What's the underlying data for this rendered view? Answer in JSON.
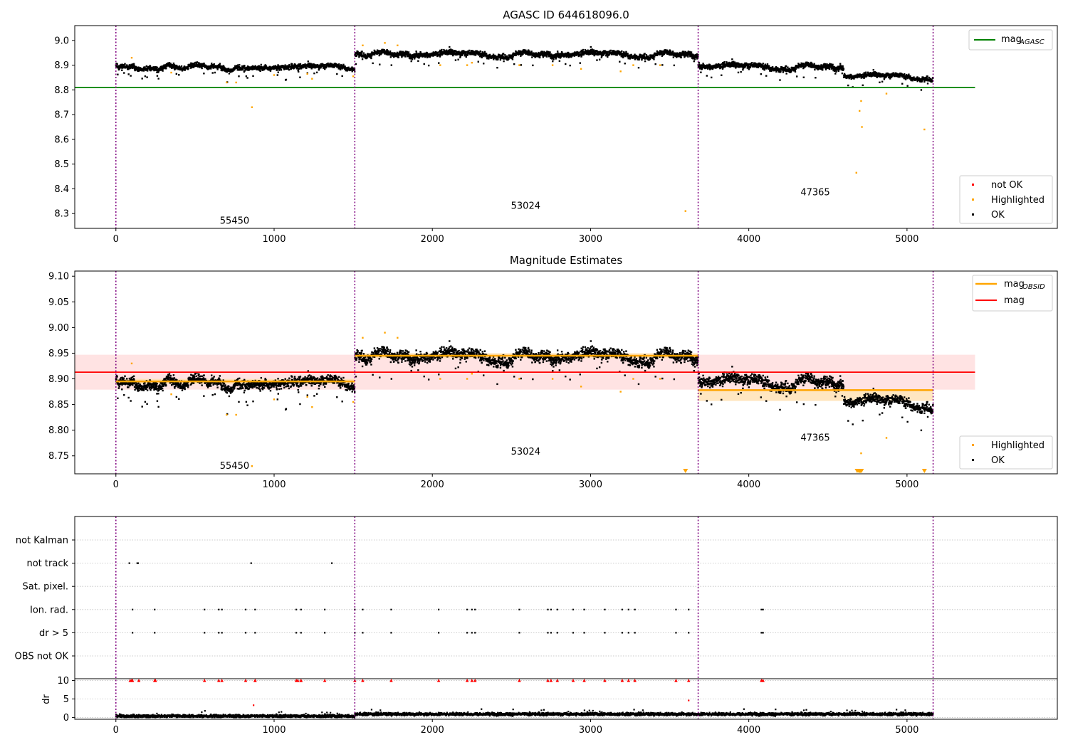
{
  "colors": {
    "ok": "#000000",
    "highlighted": "#ffa500",
    "not_ok": "#ff0000",
    "agasc_line": "#008000",
    "mag_line": "#ff0000",
    "obsid_line": "#ffa500",
    "obs_boundary": "#800080",
    "mag_band": "#ffcccc",
    "obsid_band": "#ffe0b0"
  },
  "chart_data": [
    {
      "type": "scatter",
      "title": "AGASC ID 644618096.0",
      "xlim": [
        -260,
        5950
      ],
      "ylim": [
        8.24,
        9.06
      ],
      "x_ticks": [
        0,
        1000,
        2000,
        3000,
        4000,
        5000
      ],
      "y_ticks": [
        8.3,
        8.4,
        8.5,
        8.6,
        8.7,
        8.8,
        8.9,
        9.0
      ],
      "y_tick_labels": [
        "8.3",
        "8.4",
        "8.5",
        "8.6",
        "8.7",
        "8.8",
        "8.9",
        "9.0"
      ],
      "obs_boundaries": [
        0,
        1510,
        3680,
        5165
      ],
      "obs_labels": [
        {
          "text": "55450",
          "x": 750,
          "y": 8.27
        },
        {
          "text": "53024",
          "x": 2590,
          "y": 8.33
        },
        {
          "text": "47365",
          "x": 4420,
          "y": 8.385
        }
      ],
      "mag_agasc": 8.81,
      "mag_agasc_xrange": [
        -260,
        5430
      ],
      "segments": [
        {
          "x0": 0,
          "x1": 1510,
          "y": 8.895,
          "noise": 0.011
        },
        {
          "x0": 1510,
          "x1": 3680,
          "y": 8.945,
          "noise": 0.013
        },
        {
          "x0": 3680,
          "x1": 4600,
          "y": 8.895,
          "noise": 0.013
        },
        {
          "x0": 4600,
          "x1": 5165,
          "y": 8.855,
          "noise": 0.011
        }
      ],
      "highlighted_points": [
        [
          100,
          8.93
        ],
        [
          350,
          8.87
        ],
        [
          700,
          8.83
        ],
        [
          760,
          8.83
        ],
        [
          860,
          8.73
        ],
        [
          1000,
          8.86
        ],
        [
          1210,
          8.865
        ],
        [
          1240,
          8.845
        ],
        [
          1500,
          8.855
        ],
        [
          1560,
          8.98
        ],
        [
          1700,
          8.99
        ],
        [
          1780,
          8.98
        ],
        [
          2050,
          8.9
        ],
        [
          2220,
          8.9
        ],
        [
          2250,
          8.91
        ],
        [
          2550,
          8.9
        ],
        [
          2760,
          8.9
        ],
        [
          2940,
          8.885
        ],
        [
          3190,
          8.875
        ],
        [
          3270,
          8.9
        ],
        [
          3440,
          8.9
        ],
        [
          3600,
          8.31
        ],
        [
          4680,
          8.465
        ],
        [
          4700,
          8.715
        ],
        [
          4710,
          8.755
        ],
        [
          4715,
          8.65
        ],
        [
          4870,
          8.785
        ],
        [
          5110,
          8.64
        ]
      ],
      "legend_lines": [
        {
          "label": "mag",
          "sub": "AGASC"
        }
      ],
      "legend_points": [
        "not OK",
        "Highlighted",
        "OK"
      ]
    },
    {
      "type": "scatter",
      "title": "Magnitude Estimates",
      "xlim": [
        -260,
        5950
      ],
      "ylim": [
        8.715,
        9.11
      ],
      "x_ticks": [
        0,
        1000,
        2000,
        3000,
        4000,
        5000
      ],
      "y_ticks": [
        8.75,
        8.8,
        8.85,
        8.9,
        8.95,
        9.0,
        9.05,
        9.1
      ],
      "y_tick_labels": [
        "8.75",
        "8.80",
        "8.85",
        "8.90",
        "8.95",
        "9.00",
        "9.05",
        "9.10"
      ],
      "obs_boundaries": [
        0,
        1510,
        3680,
        5165
      ],
      "obs_labels": [
        {
          "text": "55450",
          "x": 750,
          "y": 8.73
        },
        {
          "text": "53024",
          "x": 2590,
          "y": 8.758
        },
        {
          "text": "47365",
          "x": 4420,
          "y": 8.785
        }
      ],
      "mag": 8.913,
      "mag_band": [
        8.879,
        8.947
      ],
      "mag_xrange": [
        -260,
        5430
      ],
      "obsid_mags": [
        {
          "x0": 0,
          "x1": 1510,
          "y": 8.895,
          "band": [
            8.89,
            8.9
          ]
        },
        {
          "x0": 1510,
          "x1": 3680,
          "y": 8.945,
          "band": [
            8.94,
            8.95
          ]
        },
        {
          "x0": 3680,
          "x1": 5165,
          "y": 8.878,
          "band": [
            8.857,
            8.88
          ]
        }
      ],
      "lower_limit_x": [
        3600,
        4685,
        4695,
        4700,
        4705,
        4712,
        5110
      ],
      "legend_lines": [
        {
          "label": "mag",
          "sub": "OBSID"
        },
        {
          "label": "mag",
          "sub": ""
        }
      ],
      "legend_points": [
        "Highlighted",
        "OK"
      ]
    },
    {
      "type": "scatter",
      "title": "",
      "xlim": [
        -260,
        5950
      ],
      "x_ticks": [
        0,
        1000,
        2000,
        3000,
        4000,
        5000
      ],
      "categories": [
        "not Kalman",
        "not track",
        "Sat. pixel.",
        "Ion. rad.",
        "dr > 5",
        "OBS not OK"
      ],
      "flag_points": {
        "not track": [
          85,
          135,
          140,
          855,
          1365
        ],
        "Ion. rad.": [
          105,
          245,
          560,
          650,
          670,
          820,
          880,
          1140,
          1170,
          1320,
          1510,
          1560,
          1740,
          2040,
          2220,
          2250,
          2270,
          2550,
          2730,
          2750,
          2790,
          2890,
          2960,
          3090,
          3200,
          3240,
          3280,
          3540,
          3620,
          4080,
          4090
        ],
        "dr > 5": [
          105,
          245,
          560,
          650,
          670,
          820,
          880,
          1140,
          1170,
          1320,
          1510,
          1560,
          1740,
          2040,
          2220,
          2250,
          2270,
          2550,
          2730,
          2750,
          2790,
          2890,
          2960,
          3090,
          3200,
          3240,
          3280,
          3540,
          3620,
          4080,
          4090
        ]
      },
      "dr_ylabel": "dr",
      "dr_ylim": [
        -0.5,
        10.5
      ],
      "dr_y_ticks": [
        0,
        5,
        10
      ],
      "dr_y_tick_labels": [
        "0",
        "5",
        "10"
      ],
      "dr_clip": 10,
      "dr_extra_red": [
        [
          870,
          3.3
        ],
        [
          3620,
          4.6
        ]
      ]
    }
  ]
}
